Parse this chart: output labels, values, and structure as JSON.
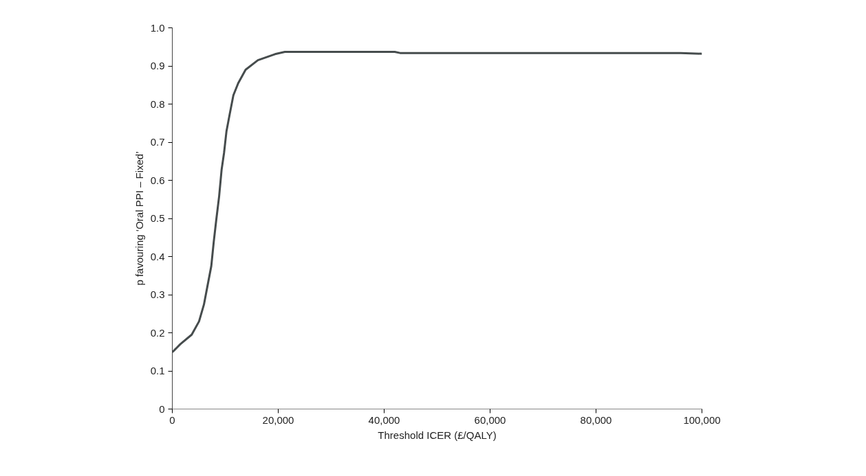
{
  "chart_data": {
    "type": "line",
    "xlabel": "Threshold ICER (£/QALY)",
    "ylabel": "p favouring ‘Oral PPI – Fixed’",
    "x": [
      0,
      1500,
      3660,
      5050,
      5970,
      6670,
      7360,
      7820,
      8290,
      8840,
      9310,
      9770,
      10230,
      10830,
      11530,
      12450,
      13840,
      16160,
      19400,
      21250,
      30000,
      42000,
      43000,
      60000,
      80000,
      96000,
      100000
    ],
    "series": [
      {
        "color": "#464c4d",
        "values": [
          0.149,
          0.17,
          0.195,
          0.23,
          0.274,
          0.325,
          0.375,
          0.438,
          0.495,
          0.558,
          0.628,
          0.672,
          0.729,
          0.773,
          0.823,
          0.855,
          0.89,
          0.915,
          0.931,
          0.937,
          0.937,
          0.937,
          0.934,
          0.934,
          0.934,
          0.934,
          0.932
        ]
      }
    ],
    "xlim": [
      0,
      100000
    ],
    "ylim": [
      0,
      1.0
    ],
    "xticks": [
      0,
      {
        "value": 20000,
        "label": "20,000"
      },
      {
        "value": 40000,
        "label": "40,000"
      },
      {
        "value": 60000,
        "label": "60,000"
      },
      {
        "value": 80000,
        "label": "80,000"
      },
      {
        "value": 100000,
        "label": "100,000"
      }
    ],
    "yticks": [
      0,
      0.1,
      0.2,
      0.3,
      0.4,
      0.5,
      0.6,
      0.7,
      0.8,
      0.9,
      {
        "value": 1.0,
        "label": "1.0"
      }
    ],
    "grid": false,
    "marker": "none",
    "line_style": "solid"
  }
}
